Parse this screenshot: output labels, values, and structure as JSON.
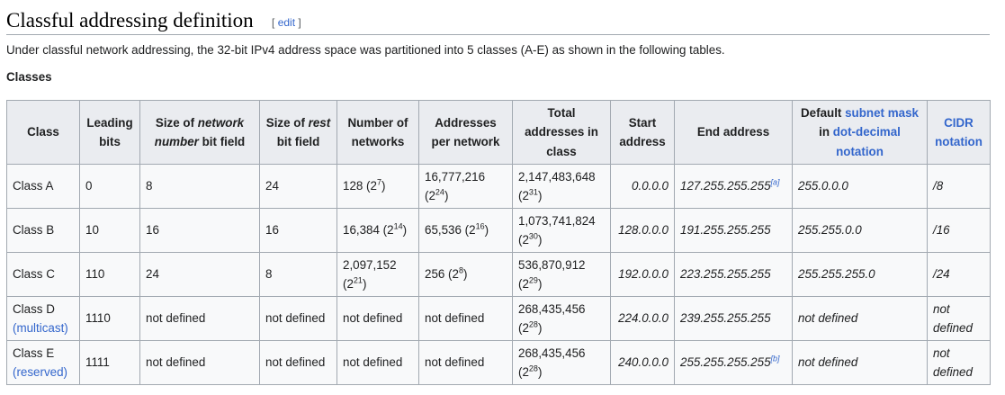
{
  "section": {
    "title": "Classful addressing definition",
    "edit_open": "[",
    "edit_label": "edit",
    "edit_close": "]"
  },
  "intro": "Under classful network addressing, the 32-bit IPv4 address space was partitioned into 5 classes (A-E) as shown in the following tables.",
  "table": {
    "caption": "Classes",
    "headers": {
      "class": "Class",
      "leading_bits": "Leading bits",
      "network_pre": "Size of ",
      "network_em": "network number",
      "network_post": " bit field",
      "rest_pre": "Size of ",
      "rest_em": "rest",
      "rest_post": " bit field",
      "networks": "Number of networks",
      "addresses": "Addresses per network",
      "total": "Total addresses in class",
      "start": "Start address",
      "end": "End address",
      "mask_pre": "Default ",
      "mask_link1": "subnet mask",
      "mask_mid": " in ",
      "mask_link2": "dot-decimal notation",
      "cidr": "CIDR notation"
    },
    "rows": [
      {
        "class": "Class A",
        "class_note": "",
        "leading": "0",
        "net_bits": "8",
        "rest_bits": "24",
        "networks": "128 (2",
        "networks_exp": "7",
        "networks_close": ")",
        "addresses": "16,777,216 (2",
        "addresses_exp": "24",
        "addresses_close": ")",
        "total": "2,147,483,648 (2",
        "total_exp": "31",
        "total_close": ")",
        "start": "0.0.0.0",
        "end": "127.255.255.255",
        "end_ref": "[a]",
        "mask": "255.0.0.0",
        "cidr": "/8"
      },
      {
        "class": "Class B",
        "class_note": "",
        "leading": "10",
        "net_bits": "16",
        "rest_bits": "16",
        "networks": "16,384 (2",
        "networks_exp": "14",
        "networks_close": ")",
        "addresses": "65,536 (2",
        "addresses_exp": "16",
        "addresses_close": ")",
        "total": "1,073,741,824 (2",
        "total_exp": "30",
        "total_close": ")",
        "start": "128.0.0.0",
        "end": "191.255.255.255",
        "end_ref": "",
        "mask": "255.255.0.0",
        "cidr": "/16"
      },
      {
        "class": "Class C",
        "class_note": "",
        "leading": "110",
        "net_bits": "24",
        "rest_bits": "8",
        "networks": "2,097,152 (2",
        "networks_exp": "21",
        "networks_close": ")",
        "addresses": "256 (2",
        "addresses_exp": "8",
        "addresses_close": ")",
        "total": "536,870,912 (2",
        "total_exp": "29",
        "total_close": ")",
        "start": "192.0.0.0",
        "end": "223.255.255.255",
        "end_ref": "",
        "mask": "255.255.255.0",
        "cidr": "/24"
      },
      {
        "class": "Class D",
        "class_note": "(multicast)",
        "leading": "1110",
        "net_bits": "not defined",
        "rest_bits": "not defined",
        "networks": "not defined",
        "networks_exp": "",
        "networks_close": "",
        "addresses": "not defined",
        "addresses_exp": "",
        "addresses_close": "",
        "total": "268,435,456 (2",
        "total_exp": "28",
        "total_close": ")",
        "start": "224.0.0.0",
        "end": "239.255.255.255",
        "end_ref": "",
        "mask": "not defined",
        "cidr": "not defined"
      },
      {
        "class": "Class E",
        "class_note": "(reserved)",
        "leading": "1111",
        "net_bits": "not defined",
        "rest_bits": "not defined",
        "networks": "not defined",
        "networks_exp": "",
        "networks_close": "",
        "addresses": "not defined",
        "addresses_exp": "",
        "addresses_close": "",
        "total": "268,435,456 (2",
        "total_exp": "28",
        "total_close": ")",
        "start": "240.0.0.0",
        "end": "255.255.255.255",
        "end_ref": "[b]",
        "mask": "not defined",
        "cidr": "not defined"
      }
    ]
  }
}
